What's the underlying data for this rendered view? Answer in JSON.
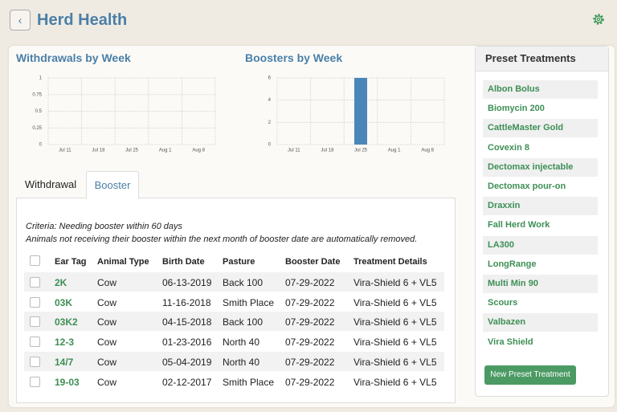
{
  "header": {
    "title": "Herd Health"
  },
  "chart_data": [
    {
      "type": "bar",
      "title": "Withdrawals by Week",
      "categories": [
        "Jul 11",
        "Jul 18",
        "Jul 25",
        "Aug 1",
        "Aug 8"
      ],
      "values": [
        0,
        0,
        0,
        0,
        0
      ],
      "color": "#4a86b8",
      "ylim": [
        0,
        1
      ],
      "yticks": [
        0,
        0.25,
        0.5,
        0.75,
        1
      ],
      "grid": true
    },
    {
      "type": "bar",
      "title": "Boosters by Week",
      "categories": [
        "Jul 11",
        "Jul 18",
        "Jul 25",
        "Aug 1",
        "Aug 8"
      ],
      "values": [
        0,
        0,
        6,
        0,
        0
      ],
      "color": "#4a86b8",
      "ylim": [
        0,
        6
      ],
      "yticks": [
        0,
        2,
        4,
        6
      ],
      "grid": true
    }
  ],
  "tabs": [
    "Withdrawal",
    "Booster"
  ],
  "criteria": [
    "Criteria: Needing booster within 60 days",
    "Animals not receiving their booster within the next month of booster date are automatically removed."
  ],
  "table": {
    "columns": [
      "Ear Tag",
      "Animal Type",
      "Birth Date",
      "Pasture",
      "Booster Date",
      "Treatment Details"
    ],
    "rows": [
      [
        "2K",
        "Cow",
        "06-13-2019",
        "Back 100",
        "07-29-2022",
        "Vira-Shield 6 + VL5"
      ],
      [
        "03K",
        "Cow",
        "11-16-2018",
        "Smith Place",
        "07-29-2022",
        "Vira-Shield 6 + VL5"
      ],
      [
        "03K2",
        "Cow",
        "04-15-2018",
        "Back 100",
        "07-29-2022",
        "Vira-Shield 6 + VL5"
      ],
      [
        "12-3",
        "Cow",
        "01-23-2016",
        "North 40",
        "07-29-2022",
        "Vira-Shield 6 + VL5"
      ],
      [
        "14/7",
        "Cow",
        "05-04-2019",
        "North 40",
        "07-29-2022",
        "Vira-Shield 6 + VL5"
      ],
      [
        "19-03",
        "Cow",
        "02-12-2017",
        "Smith Place",
        "07-29-2022",
        "Vira-Shield 6 + VL5"
      ]
    ]
  },
  "presets": {
    "title": "Preset Treatments",
    "items": [
      "Albon Bolus",
      "Biomycin 200",
      "CattleMaster Gold",
      "Covexin 8",
      "Dectomax injectable",
      "Dectomax pour-on",
      "Draxxin",
      "Fall Herd Work",
      "LA300",
      "LongRange",
      "Multi Min 90",
      "Scours",
      "Valbazen",
      "Vira Shield"
    ],
    "button": "New Preset Treatment"
  }
}
